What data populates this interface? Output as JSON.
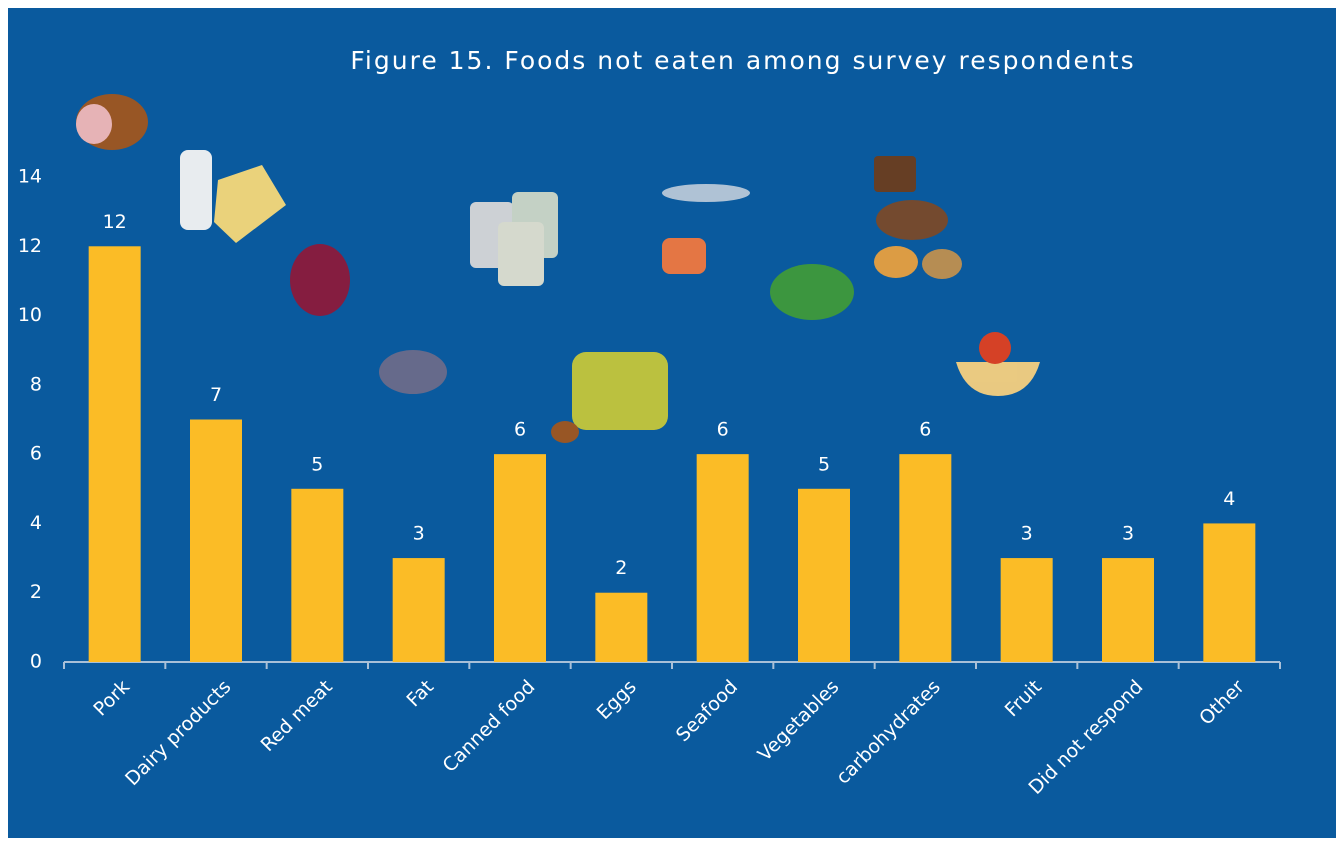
{
  "chart_data": {
    "type": "bar",
    "title": "Figure 15. Foods not eaten among survey respondents",
    "categories": [
      "Pork",
      "Dairy products",
      "Red meat",
      "Fat",
      "Canned food",
      "Eggs",
      "Seafood",
      "Vegetables",
      "carbohydrates",
      "Fruit",
      "Did not respond",
      "Other"
    ],
    "values": [
      12,
      7,
      5,
      3,
      6,
      2,
      6,
      5,
      6,
      3,
      3,
      4
    ],
    "color": "#fbbc26",
    "ylim": [
      0,
      14
    ],
    "yticks": [
      0,
      2,
      4,
      6,
      8,
      10,
      12,
      14
    ],
    "grid": false
  }
}
